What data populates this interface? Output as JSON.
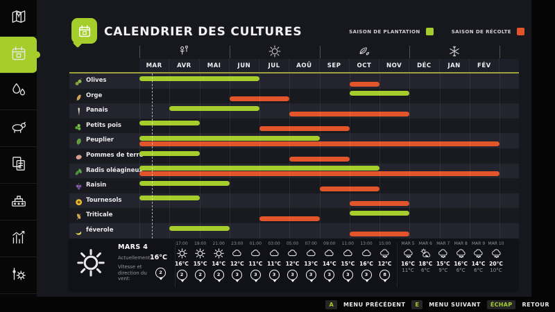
{
  "app": {
    "title": "CALENDRIER DES CULTURES"
  },
  "legend": {
    "plantation_label": "SAISON DE PLANTATION",
    "plantation_color": "#a5cd2b",
    "recolte_label": "SAISON DE RÉCOLTE",
    "recolte_color": "#e2542a"
  },
  "sidebar": {
    "items": [
      {
        "icon": "map"
      },
      {
        "icon": "calendar",
        "active": true
      },
      {
        "icon": "water-drops"
      },
      {
        "icon": "animals"
      },
      {
        "icon": "contracts"
      },
      {
        "icon": "production"
      },
      {
        "icon": "statistics"
      },
      {
        "icon": "settings"
      }
    ]
  },
  "chart_data": {
    "type": "gantt",
    "title": "CALENDRIER DES CULTURES",
    "months": [
      "MAR",
      "AVR",
      "MAI",
      "JUN",
      "JUL",
      "AOÛ",
      "SEP",
      "OCT",
      "NOV",
      "DÉC",
      "JAN",
      "FÉV"
    ],
    "season_icons": [
      "spring-flower",
      "summer-sun",
      "autumn-leaf",
      "winter-snowflake"
    ],
    "series_legend": [
      "SAISON DE PLANTATION",
      "SAISON DE RÉCOLTE"
    ],
    "current_date_month_offset": 0.42,
    "crops": [
      {
        "name": "Olives",
        "icon": "olives",
        "plant": [
          0,
          4
        ],
        "harvest": [
          7,
          8
        ]
      },
      {
        "name": "Orge",
        "icon": "orge",
        "plant": [
          7,
          9
        ],
        "harvest": [
          3,
          5
        ]
      },
      {
        "name": "Panais",
        "icon": "panais",
        "plant": [
          1,
          4
        ],
        "harvest": [
          5,
          9
        ]
      },
      {
        "name": "Petits pois",
        "icon": "pois",
        "plant": [
          0,
          2
        ],
        "harvest": [
          4,
          7
        ]
      },
      {
        "name": "Peuplier",
        "icon": "peuplier",
        "plant": [
          0,
          6
        ],
        "harvest": [
          0,
          12
        ]
      },
      {
        "name": "Pommes de terre",
        "icon": "pomme",
        "plant": [
          0,
          2
        ],
        "harvest": [
          5,
          7
        ]
      },
      {
        "name": "Radis oléagineux",
        "icon": "radis",
        "plant": [
          0,
          8
        ],
        "harvest": [
          0,
          12
        ]
      },
      {
        "name": "Raisin",
        "icon": "raisin",
        "plant": [
          0,
          3
        ],
        "harvest": [
          6,
          8
        ]
      },
      {
        "name": "Tournesols",
        "icon": "tournesol",
        "plant": [
          0,
          2
        ],
        "harvest": [
          7,
          9
        ]
      },
      {
        "name": "Triticale",
        "icon": "triticale",
        "plant": [
          7,
          9
        ],
        "harvest": [
          4,
          6
        ]
      },
      {
        "name": "féverole",
        "icon": "feverole",
        "plant": [
          1,
          3
        ],
        "harvest": [
          7,
          9
        ]
      }
    ]
  },
  "weather": {
    "current": {
      "date": "MARS 4",
      "icon": "sun",
      "now_label": "Actuellement:",
      "now_temp": "16°C",
      "wind_label": "Vitesse et direction du vent:",
      "wind_value": "2"
    },
    "hourly": {
      "times": [
        "17:00",
        "19:00",
        "21:00",
        "23:00",
        "01:00",
        "03:00",
        "05:00",
        "07:00",
        "09:00",
        "11:00",
        "13:00",
        "15:00"
      ],
      "icons": [
        "sun",
        "sun",
        "sun",
        "cloud",
        "cloud",
        "cloud",
        "cloud",
        "cloud",
        "cloud",
        "cloud",
        "cloud",
        "rain"
      ],
      "temps": [
        "16°C",
        "15°C",
        "14°C",
        "12°C",
        "11°C",
        "11°C",
        "12°C",
        "13°C",
        "14°C",
        "15°C",
        "16°C",
        "12°C"
      ],
      "wind": [
        "2",
        "2",
        "2",
        "3",
        "3",
        "3",
        "3",
        "3",
        "3",
        "3",
        "3",
        "8"
      ]
    },
    "daily": {
      "labels": [
        "MAR 5",
        "MAR 6",
        "MAR 7",
        "MAR 8",
        "MAR 9",
        "MAR 10"
      ],
      "icons": [
        "rain",
        "partly",
        "rain",
        "rain",
        "rain",
        "rain"
      ],
      "day_temps": [
        "16°C",
        "18°C",
        "15°C",
        "16°C",
        "14°C",
        "20°C"
      ],
      "night_temps": [
        "11°C",
        "6°C",
        "9°C",
        "6°C",
        "6°C",
        "10°C"
      ]
    }
  },
  "footer": {
    "items": [
      {
        "key": "A",
        "label": "MENU PRÉCÉDENT"
      },
      {
        "key": "E",
        "label": "MENU SUIVANT"
      },
      {
        "key": "ÉCHAP",
        "label": "RETOUR"
      }
    ]
  }
}
